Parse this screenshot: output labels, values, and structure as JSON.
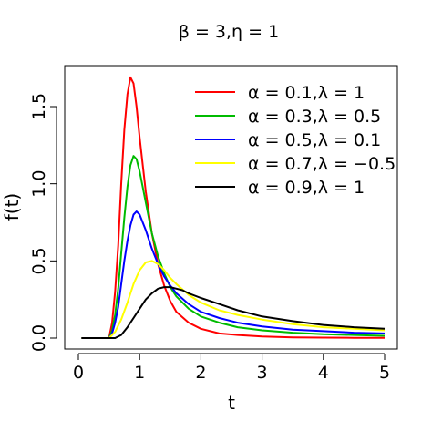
{
  "chart_data": {
    "type": "line",
    "title": "β = 3,η = 1",
    "xlabel": "t",
    "ylabel": "f(t)",
    "xlim": [
      0,
      5
    ],
    "ylim": [
      0,
      1.7
    ],
    "x_ticks": [
      "0",
      "1",
      "2",
      "3",
      "4",
      "5"
    ],
    "y_ticks": [
      "0.0",
      "0.5",
      "1.0",
      "1.5"
    ],
    "grid": false,
    "legend_position": "top-right",
    "series": [
      {
        "name": "α = 0.1,λ = 1",
        "color": "#FF0000",
        "x": [
          0.05,
          0.5,
          0.55,
          0.6,
          0.65,
          0.7,
          0.75,
          0.8,
          0.85,
          0.9,
          0.95,
          1.0,
          1.1,
          1.2,
          1.3,
          1.4,
          1.5,
          1.6,
          1.8,
          2.0,
          2.3,
          2.6,
          3.0,
          3.5,
          4.0,
          4.5,
          5.0
        ],
        "y": [
          0.0,
          0.0,
          0.1,
          0.3,
          0.6,
          1.0,
          1.35,
          1.58,
          1.69,
          1.65,
          1.5,
          1.3,
          0.95,
          0.68,
          0.48,
          0.34,
          0.24,
          0.17,
          0.1,
          0.06,
          0.03,
          0.02,
          0.01,
          0.005,
          0.003,
          0.002,
          0.001
        ]
      },
      {
        "name": "α = 0.3,λ = 0.5",
        "color": "#00BB00",
        "x": [
          0.05,
          0.5,
          0.55,
          0.6,
          0.65,
          0.7,
          0.75,
          0.8,
          0.85,
          0.9,
          0.95,
          1.0,
          1.1,
          1.2,
          1.3,
          1.4,
          1.5,
          1.6,
          1.8,
          2.0,
          2.3,
          2.6,
          3.0,
          3.5,
          4.0,
          4.5,
          5.0
        ],
        "y": [
          0.0,
          0.0,
          0.05,
          0.15,
          0.32,
          0.55,
          0.78,
          0.98,
          1.12,
          1.18,
          1.16,
          1.08,
          0.88,
          0.68,
          0.53,
          0.42,
          0.33,
          0.27,
          0.19,
          0.14,
          0.1,
          0.07,
          0.05,
          0.035,
          0.025,
          0.02,
          0.015
        ]
      },
      {
        "name": "α = 0.5,λ = 0.1",
        "color": "#0000FF",
        "x": [
          0.05,
          0.5,
          0.55,
          0.6,
          0.65,
          0.7,
          0.75,
          0.8,
          0.85,
          0.9,
          0.95,
          1.0,
          1.1,
          1.2,
          1.3,
          1.4,
          1.5,
          1.6,
          1.8,
          2.0,
          2.3,
          2.6,
          3.0,
          3.5,
          4.0,
          4.5,
          5.0
        ],
        "y": [
          0.0,
          0.0,
          0.03,
          0.1,
          0.2,
          0.35,
          0.5,
          0.63,
          0.73,
          0.8,
          0.82,
          0.8,
          0.7,
          0.58,
          0.48,
          0.4,
          0.34,
          0.29,
          0.22,
          0.17,
          0.13,
          0.1,
          0.075,
          0.055,
          0.045,
          0.035,
          0.03
        ]
      },
      {
        "name": "α = 0.7,λ = −0.5",
        "color": "#FFFF00",
        "x": [
          0.05,
          0.5,
          0.6,
          0.7,
          0.8,
          0.9,
          1.0,
          1.1,
          1.2,
          1.3,
          1.4,
          1.5,
          1.6,
          1.8,
          2.0,
          2.3,
          2.6,
          3.0,
          3.5,
          4.0,
          4.5,
          5.0
        ],
        "y": [
          0.0,
          0.0,
          0.04,
          0.12,
          0.23,
          0.35,
          0.44,
          0.49,
          0.5,
          0.48,
          0.44,
          0.39,
          0.35,
          0.28,
          0.23,
          0.18,
          0.15,
          0.12,
          0.09,
          0.07,
          0.06,
          0.05
        ]
      },
      {
        "name": "α = 0.9,λ = 1",
        "color": "#000000",
        "x": [
          0.05,
          0.6,
          0.7,
          0.8,
          0.9,
          1.0,
          1.1,
          1.2,
          1.3,
          1.4,
          1.5,
          1.6,
          1.7,
          1.8,
          2.0,
          2.3,
          2.6,
          3.0,
          3.5,
          4.0,
          4.5,
          5.0
        ],
        "y": [
          0.0,
          0.0,
          0.02,
          0.07,
          0.13,
          0.19,
          0.25,
          0.29,
          0.32,
          0.33,
          0.33,
          0.32,
          0.31,
          0.29,
          0.26,
          0.22,
          0.18,
          0.14,
          0.11,
          0.085,
          0.07,
          0.06
        ]
      }
    ]
  }
}
